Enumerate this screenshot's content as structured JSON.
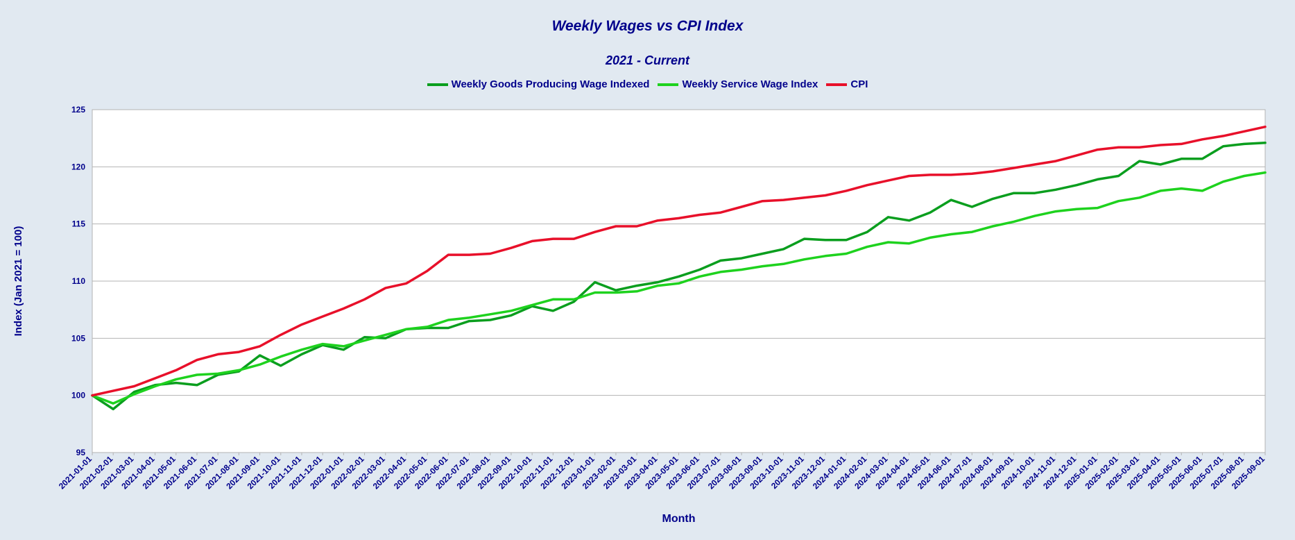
{
  "chart_data": {
    "type": "line",
    "title": "Weekly Wages vs CPI Index",
    "subtitle": "2021 - Current",
    "xlabel": "Month",
    "ylabel": "Index (Jan 2021 = 100)",
    "ylim": [
      95,
      125
    ],
    "yticks": [
      95,
      100,
      105,
      110,
      115,
      120,
      125
    ],
    "grid": true,
    "legend_position": "top-center",
    "x": [
      "2021-01-01",
      "2021-02-01",
      "2021-03-01",
      "2021-04-01",
      "2021-05-01",
      "2021-06-01",
      "2021-07-01",
      "2021-08-01",
      "2021-09-01",
      "2021-10-01",
      "2021-11-01",
      "2021-12-01",
      "2022-01-01",
      "2022-02-01",
      "2022-03-01",
      "2022-04-01",
      "2022-05-01",
      "2022-06-01",
      "2022-07-01",
      "2022-08-01",
      "2022-09-01",
      "2022-10-01",
      "2022-11-01",
      "2022-12-01",
      "2023-01-01",
      "2023-02-01",
      "2023-03-01",
      "2023-04-01",
      "2023-05-01",
      "2023-06-01",
      "2023-07-01",
      "2023-08-01",
      "2023-09-01",
      "2023-10-01",
      "2023-11-01",
      "2023-12-01",
      "2024-01-01",
      "2024-02-01",
      "2024-03-01",
      "2024-04-01",
      "2024-05-01",
      "2024-06-01",
      "2024-07-01",
      "2024-08-01",
      "2024-09-01",
      "2024-10-01",
      "2024-11-01",
      "2024-12-01",
      "2025-01-01",
      "2025-02-01",
      "2025-03-01",
      "2025-04-01",
      "2025-05-01",
      "2025-06-01",
      "2025-07-01",
      "2025-08-01",
      "2025-09-01"
    ],
    "series": [
      {
        "name": "Weekly Goods Producing Wage Indexed",
        "color": "#0a9e1e",
        "values": [
          100.0,
          98.8,
          100.3,
          100.9,
          101.1,
          100.9,
          101.8,
          102.1,
          103.5,
          102.6,
          103.6,
          104.4,
          104.0,
          105.1,
          105.0,
          105.8,
          105.9,
          105.9,
          106.5,
          106.6,
          107.0,
          107.8,
          107.4,
          108.2,
          109.9,
          109.2,
          109.6,
          109.9,
          110.4,
          111.0,
          111.8,
          112.0,
          112.4,
          112.8,
          113.7,
          113.6,
          113.6,
          114.3,
          115.6,
          115.3,
          116.0,
          117.1,
          116.5,
          117.2,
          117.7,
          117.7,
          118.0,
          118.4,
          118.9,
          119.2,
          120.5,
          120.2,
          120.7,
          120.7,
          121.8,
          122.0,
          122.1
        ]
      },
      {
        "name": "Weekly Service Wage Index",
        "color": "#1ed21e",
        "values": [
          100.0,
          99.3,
          100.1,
          100.8,
          101.4,
          101.8,
          101.9,
          102.2,
          102.7,
          103.4,
          104.0,
          104.5,
          104.3,
          104.8,
          105.3,
          105.8,
          106.0,
          106.6,
          106.8,
          107.1,
          107.4,
          107.9,
          108.4,
          108.4,
          109.0,
          109.0,
          109.1,
          109.6,
          109.8,
          110.4,
          110.8,
          111.0,
          111.3,
          111.5,
          111.9,
          112.2,
          112.4,
          113.0,
          113.4,
          113.3,
          113.8,
          114.1,
          114.3,
          114.8,
          115.2,
          115.7,
          116.1,
          116.3,
          116.4,
          117.0,
          117.3,
          117.9,
          118.1,
          117.9,
          118.7,
          119.2,
          119.5
        ]
      },
      {
        "name": "CPI",
        "color": "#e8102a",
        "values": [
          100.0,
          100.4,
          100.8,
          101.5,
          102.2,
          103.1,
          103.6,
          103.8,
          104.3,
          105.3,
          106.2,
          106.9,
          107.6,
          108.4,
          109.4,
          109.8,
          110.9,
          112.3,
          112.3,
          112.4,
          112.9,
          113.5,
          113.7,
          113.7,
          114.3,
          114.8,
          114.8,
          115.3,
          115.5,
          115.8,
          116.0,
          116.5,
          117.0,
          117.1,
          117.3,
          117.5,
          117.9,
          118.4,
          118.8,
          119.2,
          119.3,
          119.3,
          119.4,
          119.6,
          119.9,
          120.2,
          120.5,
          121.0,
          121.5,
          121.7,
          121.7,
          121.9,
          122.0,
          122.4,
          122.7,
          123.1,
          123.5
        ]
      }
    ]
  },
  "colors": {
    "background": "#e1e9f1",
    "plot_background": "#ffffff",
    "text": "#00008b",
    "grid": "#b3b3b3"
  }
}
